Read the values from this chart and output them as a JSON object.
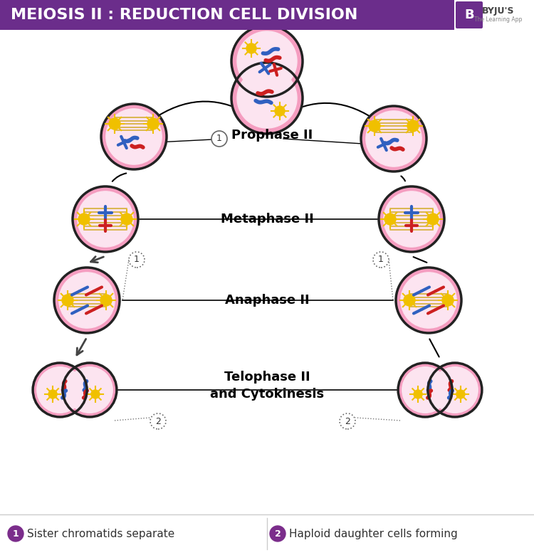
{
  "title": "MEIOSIS II : REDUCTION CELL DIVISION",
  "title_bg": "#6b2d8b",
  "title_color": "#ffffff",
  "bg_color": "#ffffff",
  "cell_fill": "#f59dc0",
  "cell_outline": "#222222",
  "inner_fill": "#fce4f0",
  "phase_labels": [
    "Prophase II",
    "Metaphase II",
    "Anaphase II",
    "Telophase II\nand Cytokinesis"
  ],
  "legend1": "Sister chromatids separate",
  "legend2": "Haploid daughter cells forming",
  "legend_circle_color": "#7b2d8b",
  "spindle_color": "#c8a000",
  "chr_blue": "#3060c0",
  "chr_red": "#cc2020",
  "sun_color": "#f0c000",
  "label_fontsize": 13,
  "title_fontsize": 16
}
